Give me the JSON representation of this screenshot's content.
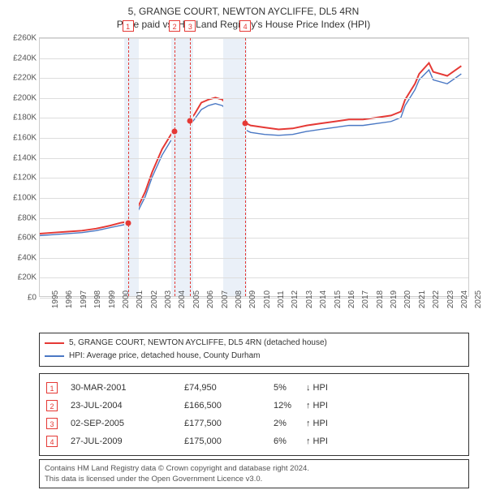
{
  "title": {
    "line1": "5, GRANGE COURT, NEWTON AYCLIFFE, DL5 4RN",
    "line2": "Price paid vs. HM Land Registry's House Price Index (HPI)"
  },
  "chart": {
    "type": "line",
    "background_color": "#ffffff",
    "grid_color": "#dddddd",
    "border_color": "#cccccc",
    "label_fontsize": 10,
    "label_color": "#555555",
    "x": {
      "min": 1995,
      "max": 2025.5,
      "ticks": [
        1995,
        1996,
        1997,
        1998,
        1999,
        2000,
        2001,
        2002,
        2003,
        2004,
        2005,
        2006,
        2007,
        2008,
        2009,
        2010,
        2011,
        2012,
        2013,
        2014,
        2015,
        2016,
        2017,
        2018,
        2019,
        2020,
        2021,
        2022,
        2023,
        2024,
        2025
      ]
    },
    "y": {
      "min": 0,
      "max": 260000,
      "ticks": [
        0,
        20000,
        40000,
        60000,
        80000,
        100000,
        120000,
        140000,
        160000,
        180000,
        200000,
        220000,
        240000,
        260000
      ],
      "labels": [
        "£0",
        "£20K",
        "£40K",
        "£60K",
        "£80K",
        "£100K",
        "£120K",
        "£140K",
        "£160K",
        "£180K",
        "£200K",
        "£220K",
        "£240K",
        "£260K"
      ]
    },
    "shaded_bands": [
      {
        "from": 2001.0,
        "to": 2002.0,
        "color": "#eaf0f8"
      },
      {
        "from": 2004.3,
        "to": 2005.9,
        "color": "#eaf0f8"
      },
      {
        "from": 2008.0,
        "to": 2009.7,
        "color": "#eaf0f8"
      }
    ],
    "series": [
      {
        "name": "price_paid",
        "label": "5, GRANGE COURT, NEWTON AYCLIFFE, DL5 4RN (detached house)",
        "color": "#e53935",
        "width": 2,
        "points": [
          [
            1995,
            63000
          ],
          [
            1996,
            64000
          ],
          [
            1997,
            65000
          ],
          [
            1998,
            66000
          ],
          [
            1999,
            68000
          ],
          [
            2000,
            71000
          ],
          [
            2000.8,
            74000
          ],
          [
            2001.25,
            74950
          ],
          [
            2002,
            90000
          ],
          [
            2002.5,
            105000
          ],
          [
            2003,
            125000
          ],
          [
            2003.7,
            148000
          ],
          [
            2004.3,
            162000
          ],
          [
            2004.56,
            166500
          ],
          [
            2005,
            175000
          ],
          [
            2005.67,
            177500
          ],
          [
            2006,
            183000
          ],
          [
            2006.5,
            195000
          ],
          [
            2007,
            198000
          ],
          [
            2007.5,
            200000
          ],
          [
            2008,
            198000
          ],
          [
            2008.5,
            190000
          ],
          [
            2009,
            178000
          ],
          [
            2009.57,
            175000
          ],
          [
            2010,
            172000
          ],
          [
            2011,
            170000
          ],
          [
            2012,
            168000
          ],
          [
            2013,
            169000
          ],
          [
            2014,
            172000
          ],
          [
            2015,
            174000
          ],
          [
            2016,
            176000
          ],
          [
            2017,
            178000
          ],
          [
            2018,
            178000
          ],
          [
            2019,
            180000
          ],
          [
            2020,
            182000
          ],
          [
            2020.7,
            186000
          ],
          [
            2021,
            198000
          ],
          [
            2021.7,
            214000
          ],
          [
            2022,
            224000
          ],
          [
            2022.7,
            235000
          ],
          [
            2023,
            226000
          ],
          [
            2024,
            222000
          ],
          [
            2025,
            232000
          ]
        ]
      },
      {
        "name": "hpi",
        "label": "HPI: Average price, detached house, County Durham",
        "color": "#4a78c4",
        "width": 1.4,
        "points": [
          [
            1995,
            61000
          ],
          [
            1996,
            62000
          ],
          [
            1997,
            63000
          ],
          [
            1998,
            64000
          ],
          [
            1999,
            66000
          ],
          [
            2000,
            69000
          ],
          [
            2001,
            72000
          ],
          [
            2002,
            86000
          ],
          [
            2002.5,
            100000
          ],
          [
            2003,
            120000
          ],
          [
            2003.7,
            142000
          ],
          [
            2004.3,
            156000
          ],
          [
            2004.56,
            160000
          ],
          [
            2005,
            168000
          ],
          [
            2005.67,
            172000
          ],
          [
            2006,
            178000
          ],
          [
            2006.5,
            188000
          ],
          [
            2007,
            192000
          ],
          [
            2007.5,
            194000
          ],
          [
            2008,
            192000
          ],
          [
            2008.5,
            184000
          ],
          [
            2009,
            172000
          ],
          [
            2009.57,
            168000
          ],
          [
            2010,
            165000
          ],
          [
            2011,
            163000
          ],
          [
            2012,
            162000
          ],
          [
            2013,
            163000
          ],
          [
            2014,
            166000
          ],
          [
            2015,
            168000
          ],
          [
            2016,
            170000
          ],
          [
            2017,
            172000
          ],
          [
            2018,
            172000
          ],
          [
            2019,
            174000
          ],
          [
            2020,
            176000
          ],
          [
            2020.7,
            180000
          ],
          [
            2021,
            192000
          ],
          [
            2021.7,
            208000
          ],
          [
            2022,
            218000
          ],
          [
            2022.7,
            228000
          ],
          [
            2023,
            218000
          ],
          [
            2024,
            214000
          ],
          [
            2025,
            224000
          ]
        ]
      }
    ],
    "sale_markers": [
      {
        "n": "1",
        "year": 2001.25,
        "price": 74950
      },
      {
        "n": "2",
        "year": 2004.56,
        "price": 166500
      },
      {
        "n": "3",
        "year": 2005.67,
        "price": 177500
      },
      {
        "n": "4",
        "year": 2009.57,
        "price": 175000
      }
    ],
    "marker_color": "#e53935",
    "marker_box_bg": "#ffffff"
  },
  "legend": {
    "items": [
      {
        "color": "#e53935",
        "label": "5, GRANGE COURT, NEWTON AYCLIFFE, DL5 4RN (detached house)"
      },
      {
        "color": "#4a78c4",
        "label": "HPI: Average price, detached house, County Durham"
      }
    ]
  },
  "sales_table": {
    "rows": [
      {
        "n": "1",
        "date": "30-MAR-2001",
        "price": "£74,950",
        "pct": "5%",
        "dir": "down",
        "suffix": "HPI"
      },
      {
        "n": "2",
        "date": "23-JUL-2004",
        "price": "£166,500",
        "pct": "12%",
        "dir": "up",
        "suffix": "HPI"
      },
      {
        "n": "3",
        "date": "02-SEP-2005",
        "price": "£177,500",
        "pct": "2%",
        "dir": "up",
        "suffix": "HPI"
      },
      {
        "n": "4",
        "date": "27-JUL-2009",
        "price": "£175,000",
        "pct": "6%",
        "dir": "up",
        "suffix": "HPI"
      }
    ]
  },
  "footer": {
    "line1": "Contains HM Land Registry data © Crown copyright and database right 2024.",
    "line2": "This data is licensed under the Open Government Licence v3.0."
  }
}
